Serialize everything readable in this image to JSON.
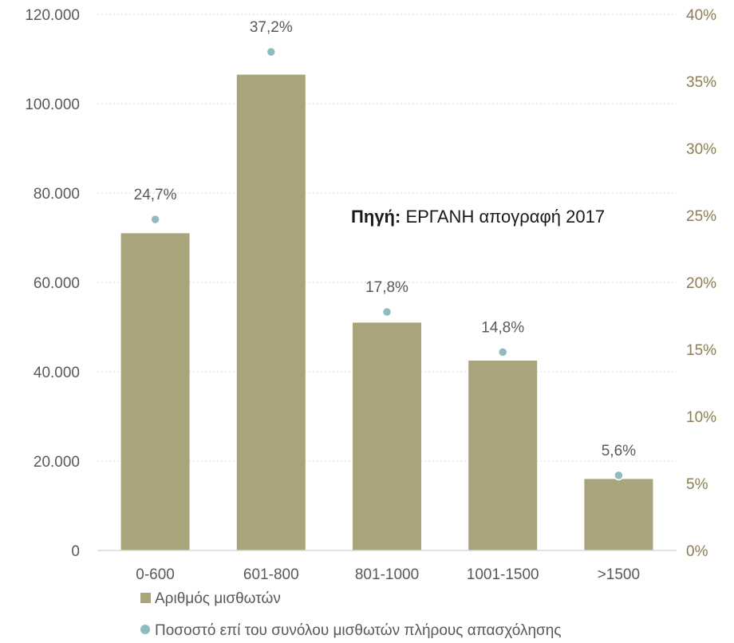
{
  "chart_data": {
    "type": "bar",
    "categories": [
      "0-600",
      "601-800",
      "801-1000",
      "1001-1500",
      ">1500"
    ],
    "series": [
      {
        "name": "Αριθμός μισθωτών",
        "type": "bar",
        "axis": "left",
        "values": [
          71000,
          106500,
          51000,
          42500,
          16000
        ],
        "color": "#a9a47b"
      },
      {
        "name": "Ποσοστό επί του συνόλου μισθωτών πλήρους απασχόλησης",
        "type": "scatter",
        "axis": "right",
        "values": [
          24.7,
          37.2,
          17.8,
          14.8,
          5.6
        ],
        "labels": [
          "24,7%",
          "37,2%",
          "17,8%",
          "14,8%",
          "5,6%"
        ],
        "color": "#8fbcbe"
      }
    ],
    "ylim": [
      0,
      120000
    ],
    "y_ticks": [
      "0",
      "20.000",
      "40.000",
      "60.000",
      "80.000",
      "100.000",
      "120.000"
    ],
    "y2lim": [
      0,
      40
    ],
    "y2_ticks": [
      "0%",
      "5%",
      "10%",
      "15%",
      "20%",
      "25%",
      "30%",
      "35%",
      "40%"
    ],
    "grid": "horizontal dotted",
    "legend_position": "bottom-left",
    "annotation": {
      "bold": "Πηγή:",
      "text": " ΕΡΓΑΝΗ απογραφή 2017"
    }
  }
}
